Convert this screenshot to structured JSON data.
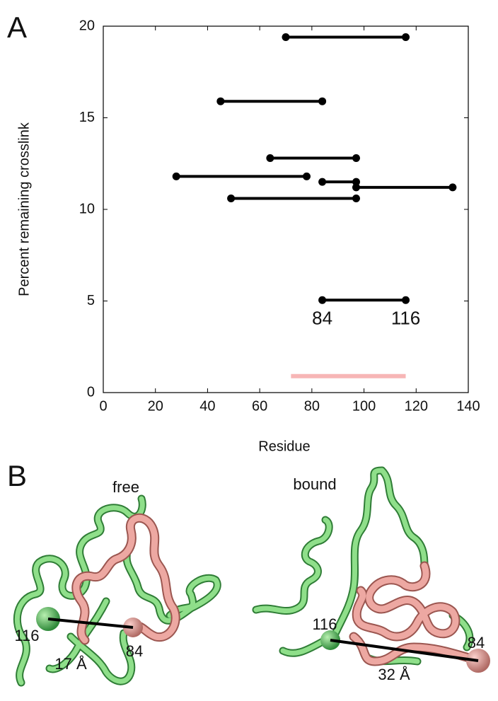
{
  "chart_data": {
    "type": "dumbbell",
    "xlabel": "Residue",
    "ylabel": "Percent remaining crosslink",
    "xlim": [
      0,
      140
    ],
    "xticks": [
      0,
      20,
      40,
      60,
      80,
      100,
      120,
      140
    ],
    "ylim": [
      0,
      20
    ],
    "yticks": [
      0,
      5,
      10,
      15,
      20
    ],
    "color": "#000000",
    "segments": [
      {
        "start": 70,
        "end": 116,
        "y": 19.4
      },
      {
        "start": 45,
        "end": 84,
        "y": 15.9
      },
      {
        "start": 64,
        "end": 97,
        "y": 12.8
      },
      {
        "start": 28,
        "end": 78,
        "y": 11.8
      },
      {
        "start": 84,
        "end": 97,
        "y": 11.5
      },
      {
        "start": 97,
        "end": 134,
        "y": 11.2
      },
      {
        "start": 49,
        "end": 97,
        "y": 10.6
      },
      {
        "start": 84,
        "end": 116,
        "y": 5.05
      }
    ],
    "highlight": {
      "start": 72,
      "end": 116,
      "y": 0.9,
      "color": "#f7b6b6"
    },
    "annotations": [
      {
        "text": "84",
        "x": 84,
        "y": 4
      },
      {
        "text": "116",
        "x": 116,
        "y": 4
      }
    ]
  },
  "panel_labels": [
    "A",
    "B"
  ],
  "structures": [
    {
      "state": "free",
      "start_label": "116",
      "end_label": "84",
      "distance": "17 Å"
    },
    {
      "state": "bound",
      "start_label": "116",
      "end_label": "84",
      "distance": "32 Å"
    }
  ]
}
